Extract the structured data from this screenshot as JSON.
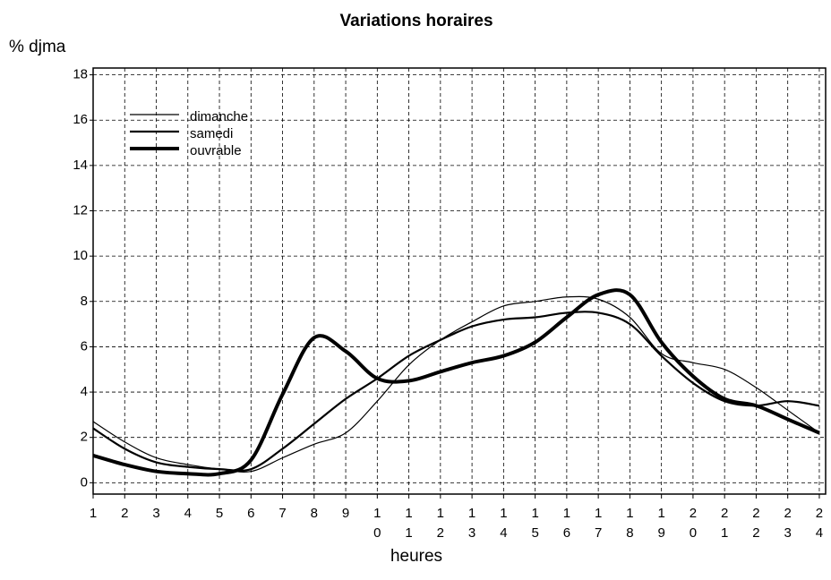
{
  "chart_data": {
    "type": "line",
    "title": "Variations horaires",
    "ylabel": "% djma",
    "xlabel": "heures",
    "x": [
      1,
      2,
      3,
      4,
      5,
      6,
      7,
      8,
      9,
      10,
      11,
      12,
      13,
      14,
      15,
      16,
      17,
      18,
      19,
      20,
      21,
      22,
      23,
      24
    ],
    "series": [
      {
        "name": "dimanche",
        "color": "#000000",
        "values": [
          2.7,
          1.8,
          1.1,
          0.8,
          0.6,
          0.5,
          1.1,
          1.7,
          2.2,
          3.6,
          5.2,
          6.3,
          7.1,
          7.8,
          8.0,
          8.2,
          8.1,
          7.3,
          5.7,
          5.3,
          5.0,
          4.2,
          3.2,
          2.2
        ]
      },
      {
        "name": "samedi",
        "color": "#000000",
        "values": [
          2.4,
          1.5,
          0.9,
          0.7,
          0.6,
          0.6,
          1.5,
          2.6,
          3.7,
          4.6,
          5.6,
          6.3,
          6.9,
          7.2,
          7.3,
          7.5,
          7.5,
          7.0,
          5.6,
          4.4,
          3.6,
          3.4,
          3.6,
          3.4
        ]
      },
      {
        "name": "ouvrable",
        "color": "#000000",
        "values": [
          1.2,
          0.8,
          0.5,
          0.4,
          0.4,
          1.0,
          3.9,
          6.4,
          5.8,
          4.6,
          4.5,
          4.9,
          5.3,
          5.6,
          6.2,
          7.3,
          8.3,
          8.3,
          6.2,
          4.7,
          3.7,
          3.4,
          2.8,
          2.2
        ]
      }
    ],
    "xlim": [
      1,
      24.2
    ],
    "xticks": [
      1,
      2,
      3,
      4,
      5,
      6,
      7,
      8,
      9,
      10,
      11,
      12,
      13,
      14,
      15,
      16,
      17,
      18,
      19,
      20,
      21,
      22,
      23,
      24
    ],
    "ylim": [
      -0.5,
      18.3
    ],
    "yticks": [
      0,
      2,
      4,
      6,
      8,
      10,
      12,
      14,
      16,
      18
    ],
    "grid": true,
    "legend": "upper left"
  }
}
